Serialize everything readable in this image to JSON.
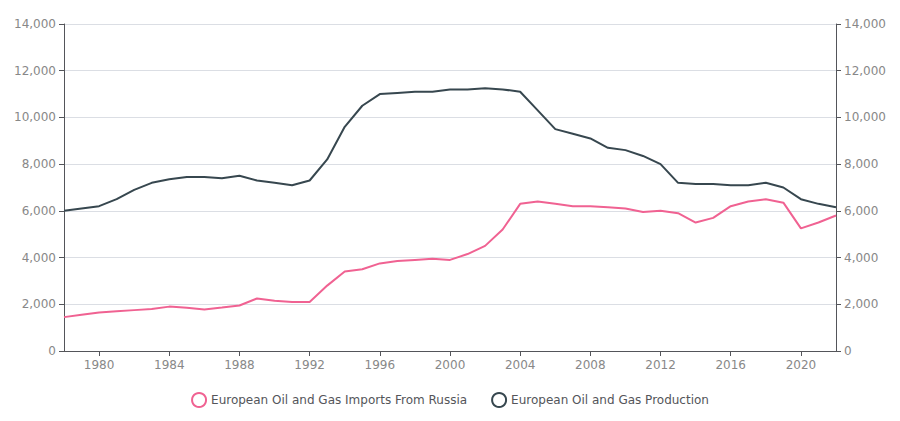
{
  "chart_data": {
    "type": "line",
    "x": [
      1978,
      1979,
      1980,
      1981,
      1982,
      1983,
      1984,
      1985,
      1986,
      1987,
      1988,
      1989,
      1990,
      1991,
      1992,
      1993,
      1994,
      1995,
      1996,
      1997,
      1998,
      1999,
      2000,
      2001,
      2002,
      2003,
      2004,
      2005,
      2006,
      2007,
      2008,
      2009,
      2010,
      2011,
      2012,
      2013,
      2014,
      2015,
      2016,
      2017,
      2018,
      2019,
      2020,
      2021,
      2022
    ],
    "series": [
      {
        "name": "European Oil and Gas Imports From Russia",
        "color": "#f06292",
        "values": [
          1450,
          1550,
          1650,
          1700,
          1750,
          1800,
          1900,
          1850,
          1780,
          1860,
          1950,
          2250,
          2150,
          2100,
          2100,
          2800,
          3400,
          3500,
          3750,
          3850,
          3900,
          3950,
          3900,
          4150,
          4500,
          5200,
          6300,
          6400,
          6300,
          6200,
          6200,
          6150,
          6100,
          5950,
          6000,
          5900,
          5500,
          5700,
          6200,
          6400,
          6500,
          6350,
          5250,
          5500,
          5800
        ]
      },
      {
        "name": "European Oil and Gas Production",
        "color": "#37474f",
        "axis": "y2",
        "values": [
          6000,
          6100,
          6200,
          6500,
          6900,
          7200,
          7350,
          7450,
          7450,
          7400,
          7500,
          7300,
          7200,
          7100,
          7300,
          8200,
          9600,
          10500,
          11000,
          11050,
          11100,
          11100,
          11200,
          11200,
          11250,
          11200,
          11100,
          10300,
          9500,
          9300,
          9100,
          8700,
          8600,
          8350,
          8000,
          7200,
          7150,
          7150,
          7100,
          7100,
          7200,
          7000,
          6500,
          6300,
          6150
        ]
      }
    ],
    "xlim": [
      1978,
      2022
    ],
    "xticks": [
      1980,
      1984,
      1988,
      1992,
      1996,
      2000,
      2004,
      2008,
      2012,
      2016,
      2020
    ],
    "ylim": [
      0,
      14000
    ],
    "yticks": [
      0,
      {
        "value": 2000,
        "label": "2,000"
      },
      {
        "value": 4000,
        "label": "4,000"
      },
      {
        "value": 6000,
        "label": "6,000"
      },
      {
        "value": 8000,
        "label": "8,000"
      },
      {
        "value": 10000,
        "label": "10,000"
      },
      {
        "value": 12000,
        "label": "12,000"
      },
      {
        "value": 14000,
        "label": "14,000"
      }
    ],
    "y2lim": [
      0,
      14000
    ],
    "y2ticks": [
      0,
      {
        "value": 2000,
        "label": "2,000"
      },
      {
        "value": 4000,
        "label": "4,000"
      },
      {
        "value": 6000,
        "label": "6,000"
      },
      {
        "value": 8000,
        "label": "8,000"
      },
      {
        "value": 10000,
        "label": "10,000"
      },
      {
        "value": 12000,
        "label": "12,000"
      },
      {
        "value": 14000,
        "label": "14,000"
      }
    ],
    "grid": true,
    "legend": "bottom"
  }
}
